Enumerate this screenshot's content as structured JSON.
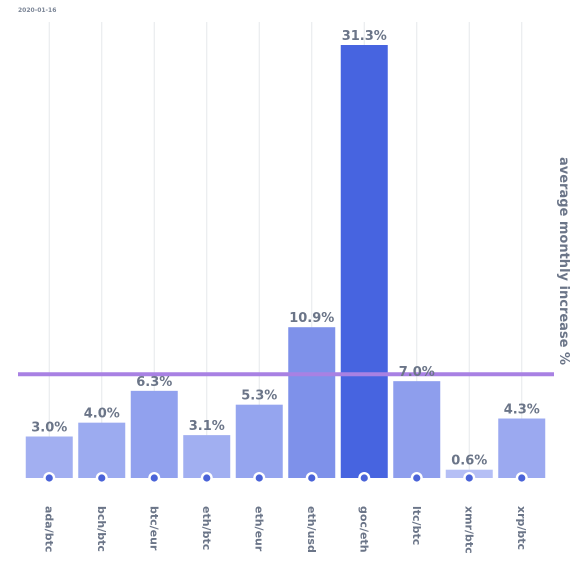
{
  "header": {
    "date": "2020-01-16"
  },
  "chart_data": {
    "type": "bar",
    "title": "",
    "xlabel": "",
    "ylabel": "average monthly increase %",
    "ylim": [
      0,
      31.3
    ],
    "grid": "vertical",
    "categories": [
      "ada/btc",
      "bch/btc",
      "btc/eur",
      "eth/btc",
      "eth/eur",
      "eth/usd",
      "goc/eth",
      "ltc/btc",
      "xmr/btc",
      "xrp/btc"
    ],
    "values": [
      3.0,
      4.0,
      6.3,
      3.1,
      5.3,
      10.9,
      31.3,
      7.0,
      0.6,
      4.3
    ],
    "value_labels": [
      "3.0%",
      "4.0%",
      "6.3%",
      "3.1%",
      "5.3%",
      "10.9%",
      "31.3%",
      "7.0%",
      "0.6%",
      "4.3%"
    ],
    "highlight_category": "goc/eth",
    "reference_line": {
      "value": 7.5,
      "color": "#a881e3"
    },
    "colors": {
      "highlight": "#4764e0",
      "marker": "#4a63d8",
      "grid": "#e6e8ec",
      "text": "#6b7588"
    }
  }
}
